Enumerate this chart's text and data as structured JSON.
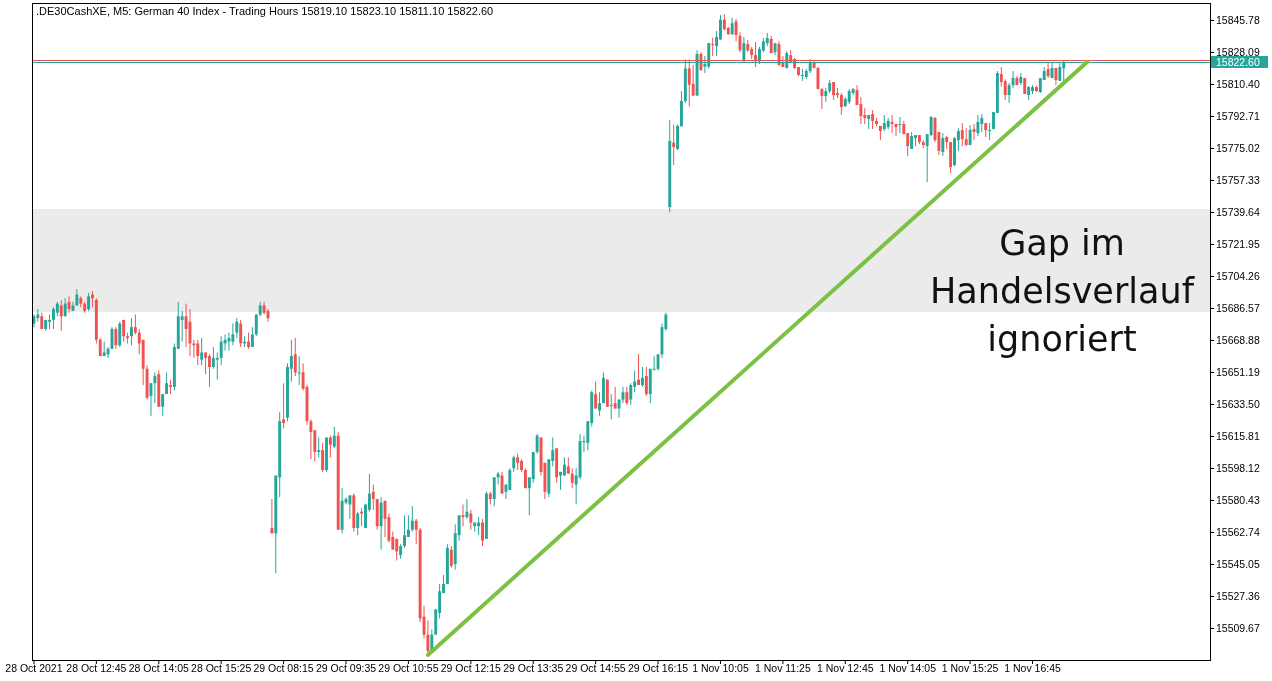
{
  "chart_data": {
    "type": "candlestick",
    "title": ".DE30CashXE, M5:  German 40 Index - Trading Hours  15819.10 15823.10 15811.10 15822.60",
    "categories": [
      "28 Oct 2021",
      null,
      null,
      null,
      null,
      null,
      null,
      null,
      null,
      null,
      null,
      null,
      null,
      null,
      null,
      null,
      "28 Oct 12:45",
      null,
      null,
      null,
      null,
      null,
      null,
      null,
      null,
      null,
      null,
      null,
      null,
      null,
      null,
      null,
      "28 Oct 14:05",
      null,
      null,
      null,
      null,
      null,
      null,
      null,
      null,
      null,
      null,
      null,
      null,
      null,
      null,
      null,
      "28 Oct 15:25",
      null,
      null,
      null,
      null,
      null,
      null,
      null,
      null,
      null,
      null,
      null,
      null,
      null,
      null,
      null,
      "29 Oct 08:15",
      null,
      null,
      null,
      null,
      null,
      null,
      null,
      null,
      null,
      null,
      null,
      null,
      null,
      null,
      null,
      "29 Oct 09:35",
      null,
      null,
      null,
      null,
      null,
      null,
      null,
      null,
      null,
      null,
      null,
      null,
      null,
      null,
      null,
      "29 Oct 10:55",
      null,
      null,
      null,
      null,
      null,
      null,
      null,
      null,
      null,
      null,
      null,
      null,
      null,
      null,
      null,
      "29 Oct 12:15",
      null,
      null,
      null,
      null,
      null,
      null,
      null,
      null,
      null,
      null,
      null,
      null,
      null,
      null,
      null,
      "29 Oct 13:35",
      null,
      null,
      null,
      null,
      null,
      null,
      null,
      null,
      null,
      null,
      null,
      null,
      null,
      null,
      null,
      "29 Oct 14:55",
      null,
      null,
      null,
      null,
      null,
      null,
      null,
      null,
      null,
      null,
      null,
      null,
      null,
      null,
      null,
      "29 Oct 16:15",
      null,
      null,
      null,
      null,
      null,
      null,
      null,
      null,
      null,
      null,
      null,
      null,
      null,
      null,
      null,
      "1 Nov 10:05",
      null,
      null,
      null,
      null,
      null,
      null,
      null,
      null,
      null,
      null,
      null,
      null,
      null,
      null,
      null,
      "1 Nov 11:25",
      null,
      null,
      null,
      null,
      null,
      null,
      null,
      null,
      null,
      null,
      null,
      null,
      null,
      null,
      null,
      "1 Nov 12:45",
      null,
      null,
      null,
      null,
      null,
      null,
      null,
      null,
      null,
      null,
      null,
      null,
      null,
      null,
      null,
      "1 Nov 14:05",
      null,
      null,
      null,
      null,
      null,
      null,
      null,
      null,
      null,
      null,
      null,
      null,
      null,
      null,
      null,
      "1 Nov 15:25",
      null,
      null,
      null,
      null,
      null,
      null,
      null,
      null,
      null,
      null,
      null,
      null,
      null,
      null,
      null,
      "1 Nov 16:45",
      null,
      null,
      null,
      null,
      null,
      null,
      null,
      null,
      null,
      null,
      null,
      null,
      null,
      null,
      null,
      null,
      null,
      null,
      null,
      null,
      null,
      null,
      null,
      null,
      null,
      null,
      null,
      null,
      null,
      null,
      null,
      null,
      null,
      null,
      null,
      null,
      null,
      null,
      null,
      null,
      null,
      null,
      null,
      null,
      null
    ],
    "ylim": [
      15492,
      15855.2
    ],
    "yticks": [
      15509.67,
      15527.36,
      15545.05,
      15562.74,
      15580.43,
      15598.12,
      15615.81,
      {
        "value": 15633.5,
        "label": "15633.50"
      },
      15651.19,
      15668.88,
      15686.57,
      15704.26,
      15721.95,
      15739.64,
      15757.33,
      15775.02,
      15792.71,
      {
        "value": 15810.4,
        "label": "15810.40"
      },
      15828.09,
      15845.78
    ],
    "ohlc": [
      [
        15678,
        15683,
        15676,
        15682
      ],
      [
        15681,
        15686,
        15679,
        15683
      ],
      [
        15682,
        15684,
        15675,
        15675
      ],
      [
        15675,
        15680,
        15674,
        15680
      ],
      [
        15679,
        15683,
        15675,
        15680
      ],
      [
        15680,
        15687,
        15675,
        15686
      ],
      [
        15684,
        15690,
        15682,
        15689
      ],
      [
        15688,
        15691,
        15674,
        15682
      ],
      [
        15682,
        15692,
        15682,
        15689
      ],
      [
        15690,
        15693,
        15684,
        15686
      ],
      [
        15685,
        15690,
        15685,
        15688
      ],
      [
        15688,
        15697,
        15688,
        15694
      ],
      [
        15692,
        15693,
        15687,
        15689
      ],
      [
        15689,
        15690,
        15684,
        15685
      ],
      [
        15686,
        15695,
        15685,
        15693
      ],
      [
        15694,
        15696,
        15687,
        15692
      ],
      [
        15691,
        15692,
        15667,
        15669
      ],
      [
        15669,
        15670,
        15660,
        15660
      ],
      [
        15660,
        15668,
        15660,
        15662
      ],
      [
        15661,
        15665,
        15659,
        15664
      ],
      [
        15664,
        15676,
        15664,
        15675
      ],
      [
        15675,
        15676,
        15664,
        15666
      ],
      [
        15666,
        15679,
        15665,
        15678
      ],
      [
        15680,
        15680,
        15668,
        15671
      ],
      [
        15671,
        15673,
        15667,
        15670
      ],
      [
        15671,
        15681,
        15666,
        15676
      ],
      [
        15676,
        15683,
        15672,
        15673
      ],
      [
        15673,
        15675,
        15661,
        15667
      ],
      [
        15669,
        15669,
        15644,
        15653
      ],
      [
        15653,
        15655,
        15636,
        15637
      ],
      [
        15638,
        15645,
        15627,
        15645
      ],
      [
        15645,
        15651,
        15634,
        15649
      ],
      [
        15650,
        15652,
        15632,
        15632
      ],
      [
        15632,
        15639,
        15627,
        15639
      ],
      [
        15639,
        15651,
        15639,
        15645
      ],
      [
        15644,
        15647,
        15639,
        15643
      ],
      [
        15643,
        15667,
        15641,
        15665
      ],
      [
        15664,
        15690,
        15664,
        15682
      ],
      [
        15680,
        15685,
        15668,
        15682
      ],
      [
        15682,
        15689,
        15665,
        15675
      ],
      [
        15679,
        15686,
        15660,
        15667
      ],
      [
        15667,
        15669,
        15659,
        15666
      ],
      [
        15667,
        15669,
        15655,
        15660
      ],
      [
        15658,
        15670,
        15655,
        15662
      ],
      [
        15662,
        15662,
        15650,
        15659
      ],
      [
        15660,
        15661,
        15643,
        15654
      ],
      [
        15654,
        15665,
        15653,
        15659
      ],
      [
        15658,
        15662,
        15647,
        15659
      ],
      [
        15659,
        15671,
        15655,
        15668
      ],
      [
        15667,
        15672,
        15663,
        15669
      ],
      [
        15668,
        15673,
        15663,
        15670
      ],
      [
        15668,
        15678,
        15666,
        15672
      ],
      [
        15673,
        15681,
        15670,
        15679
      ],
      [
        15678,
        15680,
        15665,
        15667
      ],
      [
        15667,
        15671,
        15665,
        15668
      ],
      [
        15668,
        15673,
        15664,
        15665
      ],
      [
        15665,
        15676,
        15665,
        15672
      ],
      [
        15672,
        15683,
        15671,
        15683
      ],
      [
        15683,
        15690,
        15682,
        15688
      ],
      [
        15688,
        15690,
        15683,
        15684
      ],
      [
        15685,
        15686,
        15679,
        15681
      ],
      [
        15565,
        15581,
        15562,
        15562
      ],
      [
        15562,
        15594,
        15540,
        15594
      ],
      [
        15593,
        15629,
        15582,
        15624
      ],
      [
        15625,
        15645,
        15620,
        15623
      ],
      [
        15626,
        15656,
        15624,
        15654
      ],
      [
        15653,
        15669,
        15646,
        15660
      ],
      [
        15661,
        15670,
        15649,
        15651
      ],
      [
        15651,
        15660,
        15644,
        15651
      ],
      [
        15651,
        15656,
        15641,
        15642
      ],
      [
        15643,
        15644,
        15622,
        15624
      ],
      [
        15624,
        15625,
        15603,
        15618
      ],
      [
        15619,
        15619,
        15602,
        15607
      ],
      [
        15607,
        15615,
        15604,
        15608
      ],
      [
        15608,
        15612,
        15596,
        15597
      ],
      [
        15597,
        15615,
        15596,
        15615
      ],
      [
        15615,
        15616,
        15604,
        15611
      ],
      [
        15610,
        15621,
        15609,
        15616
      ],
      [
        15616,
        15618,
        15564,
        15564
      ],
      [
        15564,
        15587,
        15562,
        15580
      ],
      [
        15579,
        15582,
        15578,
        15581
      ],
      [
        15578,
        15583,
        15570,
        15583
      ],
      [
        15583,
        15584,
        15563,
        15565
      ],
      [
        15565,
        15574,
        15561,
        15573
      ],
      [
        15574,
        15576,
        15566,
        15573
      ],
      [
        15565,
        15578,
        15565,
        15578
      ],
      [
        15575,
        15595,
        15574,
        15584
      ],
      [
        15585,
        15589,
        15575,
        15581
      ],
      [
        15581,
        15581,
        15564,
        15566
      ],
      [
        15566,
        15582,
        15553,
        15579
      ],
      [
        15580,
        15580,
        15560,
        15570
      ],
      [
        15571,
        15573,
        15557,
        15558
      ],
      [
        15560,
        15563,
        15553,
        15553
      ],
      [
        15559,
        15559,
        15547,
        15552
      ],
      [
        15550,
        15556,
        15548,
        15555
      ],
      [
        15555,
        15572,
        15554,
        15561
      ],
      [
        15560,
        15572,
        15560,
        15564
      ],
      [
        15564,
        15577,
        15563,
        15569
      ],
      [
        15569,
        15570,
        15556,
        15564
      ],
      [
        15564,
        15565,
        15513,
        15515
      ],
      [
        15516,
        15522,
        15504,
        15506
      ],
      [
        15506,
        15514,
        15495,
        15497
      ],
      [
        15497,
        15509,
        15496,
        15506
      ],
      [
        15506,
        15520,
        15506,
        15520
      ],
      [
        15518,
        15534,
        15515,
        15530
      ],
      [
        15529,
        15539,
        15529,
        15534
      ],
      [
        15534,
        15556,
        15534,
        15554
      ],
      [
        15553,
        15555,
        15543,
        15544
      ],
      [
        15545,
        15567,
        15542,
        15562
      ],
      [
        15561,
        15572,
        15558,
        15572
      ],
      [
        15572,
        15578,
        15566,
        15571
      ],
      [
        15571,
        15581,
        15570,
        15574
      ],
      [
        15573,
        15575,
        15564,
        15568
      ],
      [
        15566,
        15568,
        15563,
        15568
      ],
      [
        15566,
        15571,
        15561,
        15568
      ],
      [
        15568,
        15570,
        15555,
        15558
      ],
      [
        15559,
        15585,
        15559,
        15584
      ],
      [
        15584,
        15585,
        15578,
        15581
      ],
      [
        15581,
        15593,
        15577,
        15593
      ],
      [
        15593,
        15596,
        15589,
        15595
      ],
      [
        15594,
        15596,
        15584,
        15584
      ],
      [
        15585,
        15589,
        15581,
        15589
      ],
      [
        15586,
        15598,
        15586,
        15597
      ],
      [
        15598,
        15605,
        15596,
        15604
      ],
      [
        15604,
        15606,
        15597,
        15601
      ],
      [
        15602,
        15603,
        15596,
        15597
      ],
      [
        15597,
        15598,
        15587,
        15587
      ],
      [
        15587,
        15593,
        15572,
        15593
      ],
      [
        15592,
        15607,
        15590,
        15607
      ],
      [
        15607,
        15617,
        15606,
        15616
      ],
      [
        15615,
        15615,
        15594,
        15596
      ],
      [
        15601,
        15601,
        15581,
        15585
      ],
      [
        15584,
        15603,
        15582,
        15603
      ],
      [
        15602,
        15615,
        15599,
        15608
      ],
      [
        15609,
        15609,
        15590,
        15593
      ],
      [
        15594,
        15596,
        15586,
        15596
      ],
      [
        15594,
        15604,
        15594,
        15600
      ],
      [
        15599,
        15604,
        15595,
        15595
      ],
      [
        15595,
        15598,
        15587,
        15590
      ],
      [
        15589,
        15598,
        15578,
        15594
      ],
      [
        15593,
        15617,
        15592,
        15613
      ],
      [
        15613,
        15616,
        15607,
        15613
      ],
      [
        15612,
        15624,
        15608,
        15624
      ],
      [
        15623,
        15641,
        15621,
        15640
      ],
      [
        15639,
        15646,
        15631,
        15631
      ],
      [
        15630,
        15640,
        15627,
        15634
      ],
      [
        15634,
        15651,
        15634,
        15648
      ],
      [
        15647,
        15647,
        15632,
        15632
      ],
      [
        15633,
        15639,
        15625,
        15633
      ],
      [
        15634,
        15643,
        15631,
        15631
      ],
      [
        15631,
        15636,
        15626,
        15636
      ],
      [
        15636,
        15643,
        15634,
        15640
      ],
      [
        15640,
        15643,
        15633,
        15634
      ],
      [
        15636,
        15645,
        15633,
        15644
      ],
      [
        15643,
        15652,
        15640,
        15646
      ],
      [
        15647,
        15661,
        15644,
        15644
      ],
      [
        15644,
        15654,
        15643,
        15648
      ],
      [
        15649,
        15654,
        15638,
        15639
      ],
      [
        15639,
        15653,
        15634,
        15653
      ],
      [
        15653,
        15660,
        15652,
        15653
      ],
      [
        15653,
        15661,
        15652,
        15661
      ],
      [
        15661,
        15678,
        15659,
        15676
      ],
      [
        15675,
        15684,
        15674,
        15683
      ],
      [
        15742.4,
        15790.5,
        15739.6,
        15778.9
      ],
      [
        15778,
        15788,
        15765.6,
        15775.6
      ],
      [
        15774.5,
        15788,
        15773.9,
        15787.2
      ],
      [
        15787,
        15806.5,
        15787,
        15801
      ],
      [
        15801,
        15824,
        15800,
        15819
      ],
      [
        15819,
        15824,
        15798,
        15810
      ],
      [
        15810.5,
        15821,
        15804,
        15804
      ],
      [
        15804,
        15829,
        15804,
        15827
      ],
      [
        15827,
        15828,
        15818,
        15818
      ],
      [
        15820,
        15826,
        15816.5,
        15821.5
      ],
      [
        15820,
        15833,
        15819,
        15833
      ],
      [
        15832.5,
        15836,
        15826,
        15832
      ],
      [
        15831.4,
        15839.7,
        15825.9,
        15836.4
      ],
      [
        15835,
        15848.5,
        15835,
        15846
      ],
      [
        15846,
        15849,
        15840,
        15840.8
      ],
      [
        15841.4,
        15842,
        15837.5,
        15838
      ],
      [
        15838,
        15847,
        15837.5,
        15844
      ],
      [
        15845,
        15846.3,
        15834,
        15837.5
      ],
      [
        15837,
        15839,
        15828,
        15829
      ],
      [
        15823.7,
        15836.4,
        15822.6,
        15833
      ],
      [
        15832.5,
        15834.7,
        15828,
        15829
      ],
      [
        15829.8,
        15830.9,
        15824.2,
        15826.4
      ],
      [
        15826.4,
        15833.6,
        15819.8,
        15823
      ],
      [
        15823,
        15830.9,
        15821.5,
        15829.8
      ],
      [
        15829,
        15835.8,
        15828,
        15834
      ],
      [
        15833,
        15838.6,
        15831.4,
        15835.8
      ],
      [
        15835.3,
        15837,
        15827.5,
        15827.5
      ],
      [
        15828,
        15833,
        15826.4,
        15833
      ],
      [
        15832.5,
        15834,
        15820.3,
        15821
      ],
      [
        15822.6,
        15825.9,
        15819.8,
        15819.8
      ],
      [
        15819.3,
        15828.6,
        15819,
        15827.5
      ],
      [
        15826.4,
        15829.2,
        15822,
        15822.6
      ],
      [
        15824.2,
        15824.8,
        15818.7,
        15819.3
      ],
      [
        15819.8,
        15819.8,
        15814.8,
        15815.4
      ],
      [
        15815.4,
        15818.7,
        15812.1,
        15815.4
      ],
      [
        15814.3,
        15818.7,
        15813.2,
        15817.6
      ],
      [
        15817.6,
        15824.2,
        15816.5,
        15822.6
      ],
      [
        15822.6,
        15823.7,
        15819,
        15819.3
      ],
      [
        15819.3,
        15819.8,
        15807.6,
        15807.6
      ],
      [
        15807.6,
        15808.2,
        15796.6,
        15803.8
      ],
      [
        15803.8,
        15808.2,
        15800.5,
        15806.5
      ],
      [
        15806.5,
        15812.6,
        15805.4,
        15811
      ],
      [
        15811.5,
        15811.5,
        15801.6,
        15804.3
      ],
      [
        15805.4,
        15808.2,
        15802.7,
        15804.3
      ],
      [
        15804.3,
        15805.4,
        15793.3,
        15797.7
      ],
      [
        15798.2,
        15803.2,
        15797.7,
        15802.1
      ],
      [
        15800.5,
        15807.6,
        15799.3,
        15806.5
      ],
      [
        15805.4,
        15808.2,
        15804.3,
        15807.6
      ],
      [
        15807.1,
        15809.8,
        15798.8,
        15798.8
      ],
      [
        15799.3,
        15803.2,
        15788.3,
        15792.7
      ],
      [
        15793.3,
        15797.1,
        15788.3,
        15791.6
      ],
      [
        15791,
        15793.3,
        15785.5,
        15793.3
      ],
      [
        15793.8,
        15796,
        15785.5,
        15790
      ],
      [
        15790,
        15791.6,
        15787.2,
        15788.3
      ],
      [
        15787.2,
        15787.2,
        15779.4,
        15784.4
      ],
      [
        15785.5,
        15793.3,
        15784.4,
        15788.8
      ],
      [
        15786.6,
        15791.6,
        15785.5,
        15790
      ],
      [
        15789.4,
        15793.3,
        15783.3,
        15788.3
      ],
      [
        15788.3,
        15788.3,
        15781.6,
        15786.6
      ],
      [
        15788.3,
        15792.2,
        15783.3,
        15788.3
      ],
      [
        15788.3,
        15790,
        15782.7,
        15782.7
      ],
      [
        15783.3,
        15783.3,
        15770.6,
        15776.1
      ],
      [
        15774.5,
        15783.9,
        15774.5,
        15781.6
      ],
      [
        15780.5,
        15782.2,
        15776.1,
        15782.2
      ],
      [
        15782.2,
        15782.2,
        15777.2,
        15778.3
      ],
      [
        15778.3,
        15779.4,
        15775,
        15776.7
      ],
      [
        15776.1,
        15782.7,
        15756.2,
        15782.7
      ],
      [
        15782.2,
        15792.7,
        15781.6,
        15792.2
      ],
      [
        15791.6,
        15792.2,
        15778.3,
        15779.4
      ],
      [
        15783.9,
        15783.9,
        15771.2,
        15773.4
      ],
      [
        15772.8,
        15783.3,
        15770.6,
        15780.5
      ],
      [
        15781.1,
        15781.6,
        15774.5,
        15778.3
      ],
      [
        15778.3,
        15778.3,
        15761.2,
        15764.5
      ],
      [
        15765.6,
        15781.1,
        15765,
        15780.5
      ],
      [
        15779.4,
        15786,
        15773.4,
        15784.4
      ],
      [
        15784.9,
        15788.8,
        15776.1,
        15779.9
      ],
      [
        15779.9,
        15786,
        15776.1,
        15776.7
      ],
      [
        15776.7,
        15787.7,
        15776.7,
        15785
      ],
      [
        15785.5,
        15788.3,
        15779.4,
        15783.9
      ],
      [
        15783.3,
        15793.3,
        15781.6,
        15789.4
      ],
      [
        15788.3,
        15793.8,
        15783.9,
        15791.6
      ],
      [
        15788.8,
        15788.8,
        15781.1,
        15785
      ],
      [
        15785,
        15788.8,
        15779.4,
        15785
      ],
      [
        15785.5,
        15794.9,
        15785.5,
        15794.9
      ],
      [
        15794.4,
        15817.6,
        15794.4,
        15816.5
      ],
      [
        15815.9,
        15819.8,
        15809,
        15811.5
      ],
      [
        15812,
        15813,
        15801.6,
        15804.3
      ],
      [
        15804.3,
        15811,
        15800,
        15809.8
      ],
      [
        15809.8,
        15817.6,
        15808.2,
        15813.7
      ],
      [
        15813.7,
        15814.8,
        15809.8,
        15809.8
      ],
      [
        15811,
        15816.5,
        15809.8,
        15814.3
      ],
      [
        15813.7,
        15813.7,
        15804.9,
        15804.9
      ],
      [
        15804.3,
        15809.3,
        15801.6,
        15808.7
      ],
      [
        15806.5,
        15809.8,
        15804.9,
        15808.7
      ],
      [
        15808.7,
        15809.3,
        15806,
        15806.5
      ],
      [
        15806,
        15813.7,
        15805.4,
        15813.7
      ],
      [
        15812.6,
        15819.8,
        15812.6,
        15817.6
      ],
      [
        15818.7,
        15822.6,
        15813.7,
        15814.8
      ],
      [
        15813.7,
        15822.6,
        15813.7,
        15819.3
      ],
      [
        15819.3,
        15819.3,
        15809.8,
        15812.6
      ],
      [
        15812.1,
        15822.6,
        15812.1,
        15819.8
      ],
      [
        15819.1,
        15823.1,
        15811.1,
        15822.6
      ],
      null,
      null,
      null,
      null,
      null,
      null,
      null,
      null,
      null,
      null,
      null,
      null,
      null,
      null,
      null,
      null,
      null,
      null,
      null,
      null,
      null,
      null,
      null,
      null,
      null,
      null,
      null,
      null,
      null,
      null,
      null,
      null,
      null,
      null,
      null,
      null,
      null
    ],
    "series": [
      {
        "type": "line",
        "color": "#7cc242",
        "values": [
          null,
          null,
          null,
          null,
          null,
          null,
          null,
          null,
          null,
          null,
          null,
          null,
          null,
          null,
          null,
          null,
          null,
          null,
          null,
          null,
          null,
          null,
          null,
          null,
          null,
          null,
          null,
          null,
          null,
          null,
          null,
          null,
          null,
          null,
          null,
          null,
          null,
          null,
          null,
          null,
          null,
          null,
          null,
          null,
          null,
          null,
          null,
          null,
          null,
          null,
          null,
          null,
          null,
          null,
          null,
          null,
          null,
          null,
          null,
          null,
          null,
          null,
          null,
          null,
          null,
          null,
          null,
          null,
          null,
          null,
          null,
          null,
          null,
          null,
          null,
          null,
          null,
          null,
          null,
          null,
          null,
          null,
          null,
          null,
          null,
          null,
          null,
          null,
          null,
          null,
          null,
          null,
          null,
          null,
          null,
          null,
          null,
          null,
          null,
          null,
          null,
          15494.8,
          null,
          null,
          null,
          null,
          null,
          null,
          null,
          null,
          null,
          null,
          null,
          null,
          null,
          null,
          null,
          null,
          null,
          null,
          null,
          null,
          null,
          null,
          null,
          null,
          null,
          null,
          null,
          null,
          null,
          null,
          null,
          null,
          null,
          null,
          null,
          null,
          null,
          null,
          null,
          null,
          null,
          null,
          null,
          null,
          null,
          null,
          null,
          null,
          null,
          null,
          null,
          null,
          null,
          null,
          null,
          null,
          null,
          null,
          null,
          null,
          null,
          null,
          null,
          null,
          null,
          null,
          null,
          null,
          null,
          null,
          null,
          null,
          null,
          null,
          null,
          null,
          null,
          null,
          null,
          null,
          null,
          null,
          null,
          null,
          null,
          null,
          null,
          null,
          null,
          null,
          null,
          null,
          null,
          null,
          null,
          null,
          null,
          null,
          null,
          null,
          null,
          null,
          null,
          null,
          null,
          null,
          null,
          null,
          null,
          null,
          null,
          null,
          null,
          null,
          null,
          null,
          null,
          null,
          null,
          null,
          null,
          null,
          null,
          null,
          null,
          null,
          null,
          null,
          null,
          null,
          null,
          null,
          null,
          null,
          null,
          null,
          null,
          null,
          null,
          null,
          null,
          null,
          null,
          null,
          null,
          null,
          null,
          null,
          null,
          null,
          null,
          null,
          null,
          null,
          null,
          null,
          null,
          null,
          null,
          null,
          null,
          null,
          null,
          null,
          null,
          null,
          null,
          null,
          15822.6,
          null,
          null,
          null,
          null,
          null,
          null,
          null,
          null,
          null,
          null,
          null,
          null,
          null,
          null,
          null,
          null,
          null,
          null,
          null,
          null,
          null,
          null,
          null,
          null,
          null,
          null,
          null,
          null,
          null,
          null,
          null
        ]
      }
    ],
    "ref_lines": [
      {
        "axis": "y",
        "value": 15823.7,
        "color": "#ef5350"
      },
      {
        "axis": "y",
        "value": 15822.6,
        "label": "15822.60",
        "color": "#26a69a"
      }
    ],
    "bands": [
      {
        "axis": "y",
        "from": 15684.4,
        "to": 15741.3,
        "label": "Gap im Handelsverlauf ignoriert",
        "color": "#ebebeb"
      }
    ]
  }
}
